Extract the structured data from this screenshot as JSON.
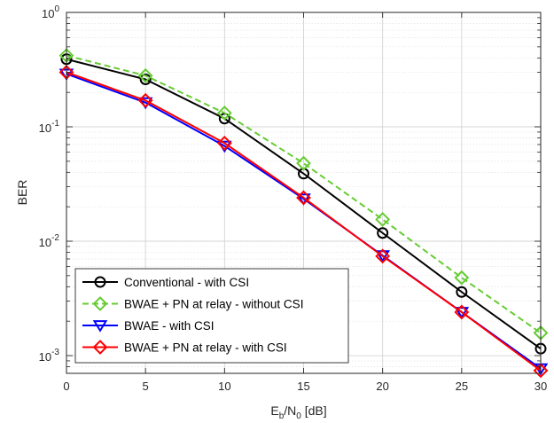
{
  "chart_data": {
    "type": "line",
    "x_scale": "linear",
    "y_scale": "log",
    "xlim": [
      0,
      30
    ],
    "ylim": [
      0.0007,
      1
    ],
    "grid": true,
    "minor_grid": true,
    "legend_position": "bottom-left",
    "xlabel": {
      "main": "E",
      "sub1": "b",
      "mid": "/N",
      "sub2": "0",
      "tail": " [dB]"
    },
    "ylabel": "BER",
    "x_ticks": [
      0,
      5,
      10,
      15,
      20,
      25,
      30
    ],
    "x_tick_labels": [
      "0",
      "5",
      "10",
      "15",
      "20",
      "25",
      "30"
    ],
    "y_ticks": [
      {
        "value": 1,
        "base": "10",
        "exp": "0"
      },
      {
        "value": 0.1,
        "base": "10",
        "exp": "-1"
      },
      {
        "value": 0.01,
        "base": "10",
        "exp": "-2"
      },
      {
        "value": 0.001,
        "base": "10",
        "exp": "-3"
      }
    ],
    "x": [
      0,
      5,
      10,
      15,
      20,
      25,
      30
    ],
    "series": [
      {
        "name": "Conventional - with CSI",
        "values": [
          0.39,
          0.26,
          0.118,
          0.039,
          0.0118,
          0.0036,
          0.00115
        ],
        "color": "#000000",
        "dash": false,
        "marker": "circle"
      },
      {
        "name": "BWAE + PN at relay - without CSI",
        "values": [
          0.42,
          0.28,
          0.132,
          0.048,
          0.0155,
          0.0048,
          0.00158
        ],
        "color": "#66CC33",
        "dash": true,
        "marker": "diamond"
      },
      {
        "name": "BWAE - with CSI",
        "values": [
          0.29,
          0.163,
          0.068,
          0.0235,
          0.0075,
          0.0024,
          0.00077
        ],
        "color": "#0000FF",
        "dash": false,
        "marker": "triangle-down"
      },
      {
        "name": "BWAE + PN at relay - with CSI",
        "values": [
          0.3,
          0.17,
          0.072,
          0.024,
          0.0074,
          0.0024,
          0.00074
        ],
        "color": "#FF0000",
        "dash": false,
        "marker": "diamond"
      }
    ]
  }
}
